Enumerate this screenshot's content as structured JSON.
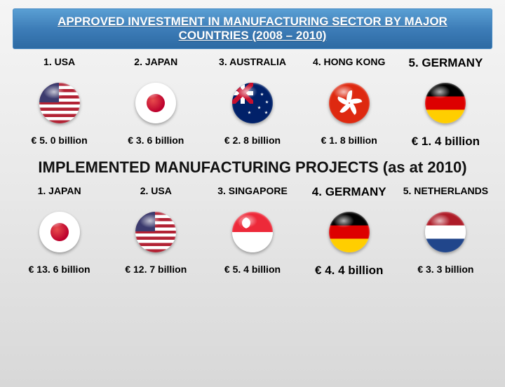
{
  "title": "APPROVED INVESTMENT IN MANUFACTURING SECTOR BY MAJOR COUNTRIES  (2008 – 2010)",
  "section1": {
    "items": [
      {
        "label": "1. USA",
        "flag": "usa",
        "value": "€ 5. 0 billion",
        "emph": false
      },
      {
        "label": "2. JAPAN",
        "flag": "japan",
        "value": "€ 3. 6 billion",
        "emph": false
      },
      {
        "label": "3. AUSTRALIA",
        "flag": "australia",
        "value": "€ 2. 8 billion",
        "emph": false
      },
      {
        "label": "4. HONG KONG",
        "flag": "hongkong",
        "value": "€ 1. 8 billion",
        "emph": false
      },
      {
        "label": "5. GERMANY",
        "flag": "germany",
        "value": "€ 1. 4 billion",
        "emph": true
      }
    ]
  },
  "section2_header": "IMPLEMENTED MANUFACTURING PROJECTS  (as at 2010)",
  "section2": {
    "items": [
      {
        "label": "1. JAPAN",
        "flag": "japan",
        "value": "€ 13. 6 billion",
        "emph": false
      },
      {
        "label": "2. USA",
        "flag": "usa",
        "value": "€ 12. 7 billion",
        "emph": false
      },
      {
        "label": "3. SINGAPORE",
        "flag": "singapore",
        "value": "€ 5. 4 billion",
        "emph": false
      },
      {
        "label": "4. GERMANY",
        "flag": "germany",
        "value": "€ 4. 4 billion",
        "emph": true
      },
      {
        "label": "5. NETHERLANDS",
        "flag": "netherlands",
        "value": "€ 3. 3 billion",
        "emph": false
      }
    ]
  },
  "colors": {
    "banner_gradient": [
      "#5a9fd4",
      "#3d7db8",
      "#2d6aa3"
    ],
    "page_gradient": [
      "#f5f5f5",
      "#e8e8e8",
      "#d8d8d8"
    ]
  },
  "fontsizes": {
    "title": 17,
    "section_header": 22,
    "label": 14,
    "label_big": 17,
    "value": 14,
    "value_big": 17
  }
}
